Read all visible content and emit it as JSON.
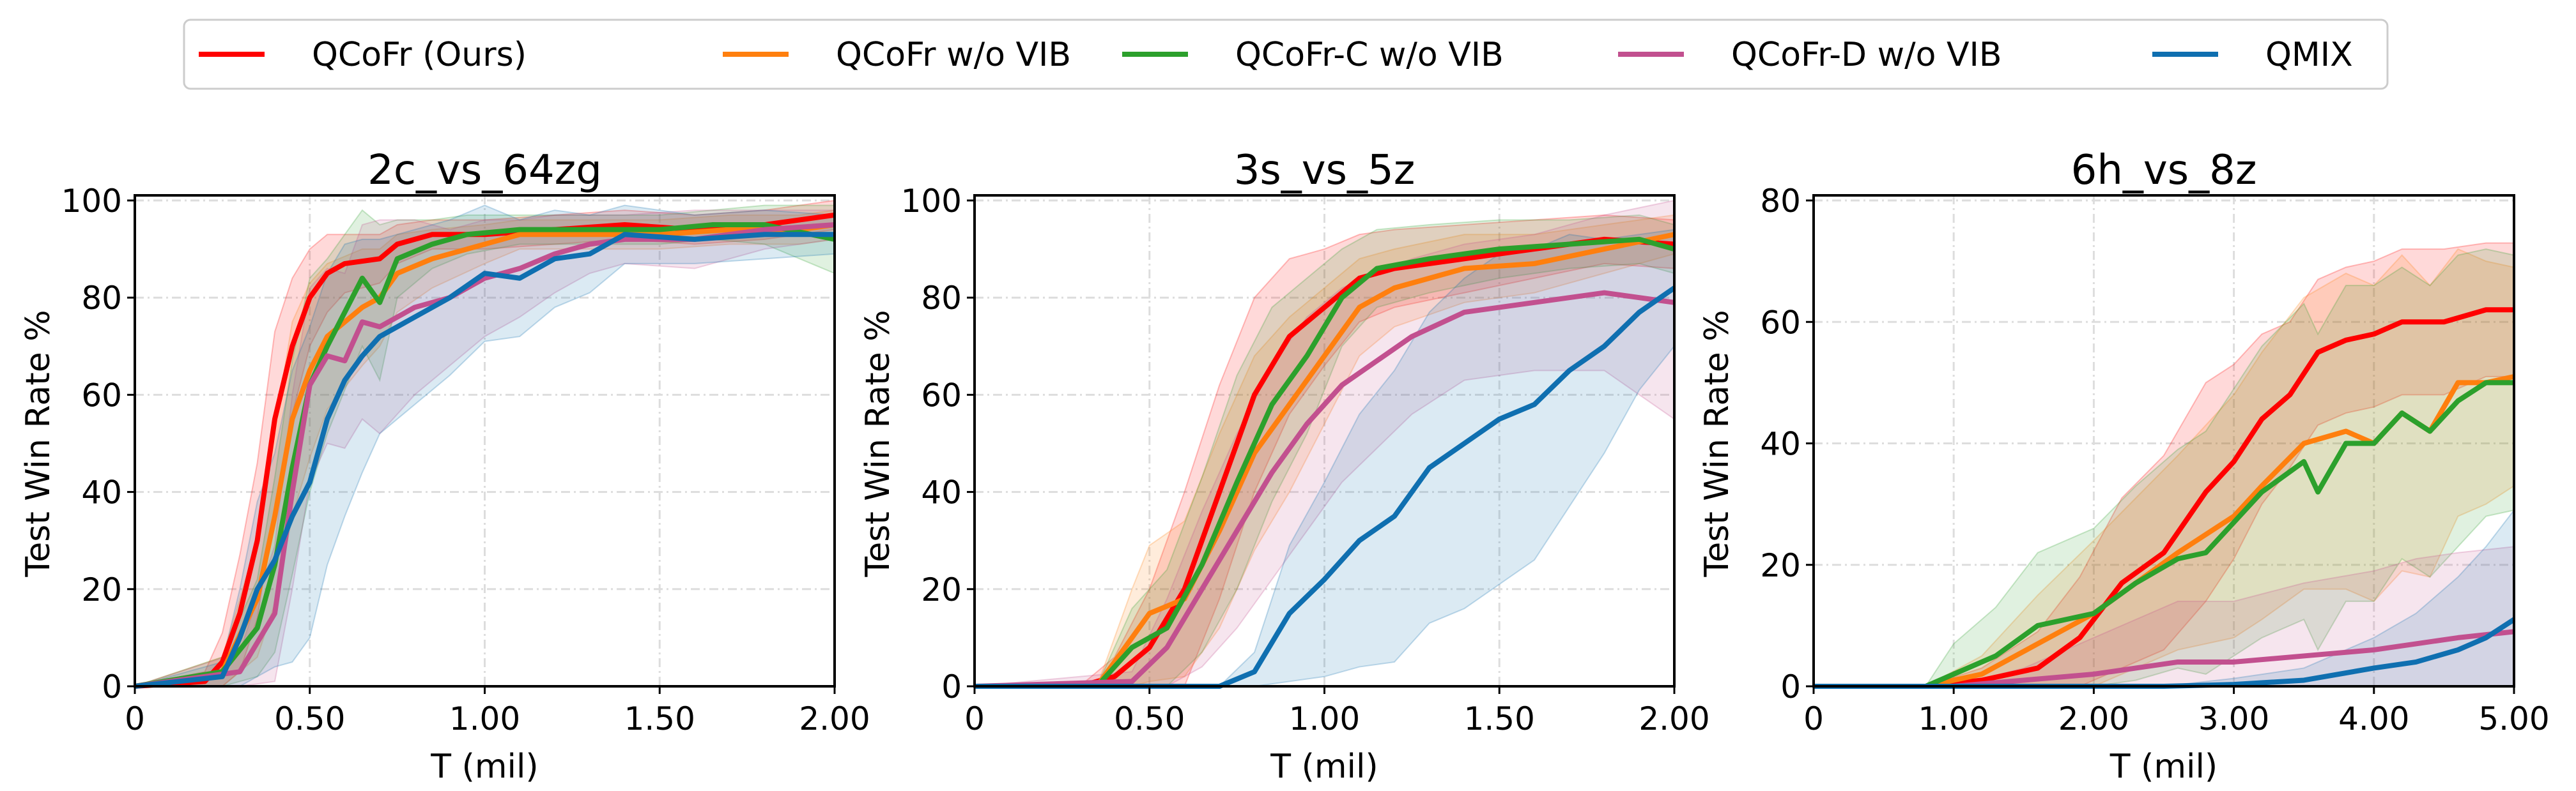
{
  "legend": {
    "placement": "top-center",
    "entries": [
      {
        "label": "QCoFr (Ours)",
        "color": "#ff0000"
      },
      {
        "label": "QCoFr w/o VIB",
        "color": "#ff7f0e"
      },
      {
        "label": "QCoFr-C w/o VIB",
        "color": "#2ca02c"
      },
      {
        "label": "QCoFr-D w/o VIB",
        "color": "#c2508f"
      },
      {
        "label": "QMIX",
        "color": "#0f6fb0"
      }
    ]
  },
  "chart_data": [
    {
      "type": "line",
      "title": "2c_vs_64zg",
      "xlabel": "T (mil)",
      "ylabel": "Test Win Rate %",
      "xlim": [
        0,
        2
      ],
      "ylim": [
        0,
        100
      ],
      "xticks": [
        0,
        0.5,
        1,
        1.5,
        2
      ],
      "xtick_labels": [
        "0",
        "0.50",
        "1.00",
        "1.50",
        "2.00"
      ],
      "yticks": [
        0,
        20,
        40,
        60,
        80,
        100
      ],
      "ytick_labels": [
        "0",
        "20",
        "40",
        "60",
        "80",
        "100"
      ],
      "grid": true,
      "series": [
        {
          "name": "QCoFr (Ours)",
          "x": [
            0,
            0.2,
            0.25,
            0.3,
            0.35,
            0.4,
            0.45,
            0.5,
            0.55,
            0.6,
            0.7,
            0.75,
            0.85,
            1.0,
            1.2,
            1.4,
            1.6,
            1.8,
            2.0
          ],
          "y": [
            0,
            1,
            5,
            15,
            30,
            55,
            70,
            80,
            85,
            87,
            88,
            91,
            93,
            93,
            94,
            95,
            94,
            95,
            97
          ],
          "band": [
            0,
            2,
            6,
            12,
            16,
            18,
            14,
            10,
            8,
            6,
            5,
            4,
            3,
            3,
            3,
            3,
            3,
            3,
            3
          ]
        },
        {
          "name": "QCoFr w/o VIB",
          "x": [
            0,
            0.25,
            0.35,
            0.4,
            0.45,
            0.5,
            0.55,
            0.65,
            0.7,
            0.75,
            0.85,
            1.0,
            1.1,
            1.3,
            1.5,
            1.7,
            1.9,
            2.0
          ],
          "y": [
            0,
            3,
            18,
            35,
            55,
            65,
            72,
            78,
            80,
            85,
            88,
            91,
            93,
            93,
            93,
            94,
            94,
            95
          ],
          "band": [
            0,
            3,
            12,
            18,
            20,
            18,
            15,
            12,
            10,
            8,
            6,
            4,
            3,
            3,
            3,
            3,
            3,
            3
          ]
        },
        {
          "name": "QCoFr-C w/o VIB",
          "x": [
            0,
            0.25,
            0.35,
            0.4,
            0.45,
            0.5,
            0.55,
            0.65,
            0.7,
            0.75,
            0.85,
            0.95,
            1.1,
            1.3,
            1.5,
            1.65,
            1.8,
            2.0
          ],
          "y": [
            0,
            3,
            12,
            25,
            45,
            62,
            70,
            84,
            79,
            88,
            91,
            93,
            94,
            94,
            94,
            95,
            95,
            92
          ],
          "band": [
            0,
            3,
            10,
            18,
            22,
            22,
            18,
            14,
            16,
            8,
            5,
            4,
            3,
            3,
            3,
            3,
            4,
            7
          ]
        },
        {
          "name": "QCoFr-D w/o VIB",
          "x": [
            0,
            0.3,
            0.4,
            0.45,
            0.5,
            0.55,
            0.6,
            0.65,
            0.7,
            0.8,
            0.9,
            1.0,
            1.1,
            1.2,
            1.3,
            1.4,
            1.6,
            1.8,
            2.0
          ],
          "y": [
            0,
            3,
            15,
            40,
            62,
            68,
            67,
            75,
            74,
            78,
            80,
            84,
            86,
            89,
            91,
            92,
            92,
            94,
            95
          ],
          "band": [
            0,
            4,
            14,
            20,
            20,
            18,
            18,
            20,
            22,
            18,
            14,
            12,
            10,
            8,
            6,
            5,
            6,
            4,
            3
          ]
        },
        {
          "name": "QMIX",
          "x": [
            0,
            0.25,
            0.3,
            0.35,
            0.4,
            0.45,
            0.5,
            0.55,
            0.6,
            0.65,
            0.7,
            0.8,
            0.9,
            1.0,
            1.1,
            1.2,
            1.3,
            1.4,
            1.6,
            1.8,
            2.0
          ],
          "y": [
            0,
            2,
            10,
            20,
            26,
            35,
            42,
            55,
            63,
            68,
            72,
            76,
            80,
            85,
            84,
            88,
            89,
            93,
            92,
            93,
            93
          ],
          "band": [
            0,
            3,
            10,
            18,
            22,
            30,
            32,
            30,
            28,
            24,
            20,
            18,
            16,
            14,
            12,
            10,
            8,
            6,
            5,
            5,
            4
          ]
        }
      ]
    },
    {
      "type": "line",
      "title": "3s_vs_5z",
      "xlabel": "T (mil)",
      "ylabel": "Test Win Rate %",
      "xlim": [
        0,
        2
      ],
      "ylim": [
        0,
        100
      ],
      "xticks": [
        0,
        0.5,
        1,
        1.5,
        2
      ],
      "xtick_labels": [
        "0",
        "0.50",
        "1.00",
        "1.50",
        "2.00"
      ],
      "yticks": [
        0,
        20,
        40,
        60,
        80,
        100
      ],
      "ytick_labels": [
        "0",
        "20",
        "40",
        "60",
        "80",
        "100"
      ],
      "grid": true,
      "series": [
        {
          "name": "QCoFr (Ours)",
          "x": [
            0,
            0.3,
            0.4,
            0.5,
            0.6,
            0.7,
            0.8,
            0.9,
            1.0,
            1.1,
            1.2,
            1.4,
            1.6,
            1.8,
            2.0
          ],
          "y": [
            0,
            0,
            2,
            8,
            20,
            40,
            60,
            72,
            78,
            84,
            86,
            88,
            90,
            92,
            91
          ],
          "band": [
            0,
            0,
            4,
            12,
            20,
            22,
            20,
            16,
            12,
            9,
            8,
            7,
            6,
            5,
            5
          ]
        },
        {
          "name": "QCoFr w/o VIB",
          "x": [
            0,
            0.35,
            0.45,
            0.5,
            0.6,
            0.7,
            0.8,
            0.9,
            1.0,
            1.1,
            1.2,
            1.4,
            1.6,
            1.8,
            2.0
          ],
          "y": [
            0,
            0,
            10,
            15,
            18,
            32,
            48,
            58,
            68,
            78,
            82,
            86,
            87,
            90,
            93
          ],
          "band": [
            0,
            0,
            10,
            14,
            16,
            20,
            20,
            18,
            14,
            10,
            8,
            7,
            6,
            5,
            4
          ]
        },
        {
          "name": "QCoFr-C w/o VIB",
          "x": [
            0,
            0.35,
            0.45,
            0.55,
            0.65,
            0.75,
            0.85,
            0.95,
            1.05,
            1.15,
            1.3,
            1.5,
            1.7,
            1.9,
            2.0
          ],
          "y": [
            0,
            0,
            8,
            12,
            25,
            42,
            58,
            68,
            80,
            86,
            88,
            90,
            91,
            92,
            90
          ],
          "band": [
            0,
            0,
            8,
            12,
            18,
            22,
            20,
            16,
            10,
            8,
            7,
            6,
            5,
            5,
            5
          ]
        },
        {
          "name": "QCoFr-D w/o VIB",
          "x": [
            0,
            0.45,
            0.55,
            0.65,
            0.75,
            0.85,
            0.95,
            1.05,
            1.15,
            1.25,
            1.4,
            1.6,
            1.8,
            2.0
          ],
          "y": [
            0,
            1,
            8,
            20,
            32,
            44,
            54,
            62,
            67,
            72,
            77,
            79,
            81,
            79
          ],
          "band": [
            0,
            2,
            10,
            16,
            20,
            22,
            22,
            20,
            18,
            16,
            14,
            14,
            16,
            24
          ]
        },
        {
          "name": "QMIX",
          "x": [
            0,
            0.7,
            0.8,
            0.9,
            1.0,
            1.1,
            1.2,
            1.3,
            1.4,
            1.5,
            1.6,
            1.7,
            1.8,
            1.9,
            2.0
          ],
          "y": [
            0,
            0,
            3,
            15,
            22,
            30,
            35,
            45,
            50,
            55,
            58,
            65,
            70,
            77,
            82
          ],
          "band": [
            0,
            0,
            4,
            14,
            20,
            26,
            30,
            32,
            34,
            34,
            32,
            28,
            22,
            16,
            12
          ]
        }
      ]
    },
    {
      "type": "line",
      "title": "6h_vs_8z",
      "xlabel": "T (mil)",
      "ylabel": "Test Win Rate %",
      "xlim": [
        0,
        5
      ],
      "ylim": [
        0,
        80
      ],
      "xticks": [
        0,
        1,
        2,
        3,
        4,
        5
      ],
      "xtick_labels": [
        "0",
        "1.00",
        "2.00",
        "3.00",
        "4.00",
        "5.00"
      ],
      "yticks": [
        0,
        20,
        40,
        60,
        80
      ],
      "ytick_labels": [
        "0",
        "20",
        "40",
        "60",
        "80"
      ],
      "grid": true,
      "series": [
        {
          "name": "QCoFr (Ours)",
          "x": [
            0,
            0.8,
            1.2,
            1.6,
            1.9,
            2.2,
            2.5,
            2.8,
            3.0,
            3.2,
            3.4,
            3.6,
            3.8,
            4.0,
            4.2,
            4.5,
            4.8,
            5.0
          ],
          "y": [
            0,
            0,
            1,
            3,
            8,
            17,
            22,
            32,
            37,
            44,
            48,
            55,
            57,
            58,
            60,
            60,
            62,
            62
          ],
          "band": [
            0,
            0,
            2,
            6,
            10,
            14,
            16,
            18,
            16,
            14,
            12,
            12,
            12,
            12,
            12,
            12,
            11,
            11
          ]
        },
        {
          "name": "QCoFr w/o VIB",
          "x": [
            0,
            0.8,
            1.2,
            1.6,
            2.0,
            2.3,
            2.6,
            3.0,
            3.2,
            3.5,
            3.8,
            4.0,
            4.2,
            4.4,
            4.6,
            4.8,
            5.0
          ],
          "y": [
            0,
            0,
            2,
            7,
            12,
            17,
            22,
            28,
            33,
            40,
            42,
            40,
            45,
            42,
            50,
            50,
            51
          ],
          "band": [
            0,
            0,
            3,
            8,
            12,
            14,
            16,
            20,
            22,
            24,
            26,
            26,
            26,
            24,
            22,
            20,
            18
          ]
        },
        {
          "name": "QCoFr-C w/o VIB",
          "x": [
            0,
            0.8,
            1.0,
            1.3,
            1.6,
            2.0,
            2.3,
            2.6,
            2.8,
            3.0,
            3.2,
            3.5,
            3.6,
            3.8,
            4.0,
            4.2,
            4.4,
            4.6,
            4.8,
            5.0
          ],
          "y": [
            0,
            0,
            2,
            5,
            10,
            12,
            17,
            21,
            22,
            27,
            32,
            37,
            32,
            40,
            40,
            45,
            42,
            47,
            50,
            50
          ],
          "band": [
            0,
            0,
            5,
            8,
            12,
            14,
            16,
            18,
            20,
            22,
            24,
            26,
            26,
            26,
            26,
            24,
            24,
            24,
            22,
            21
          ]
        },
        {
          "name": "QCoFr-D w/o VIB",
          "x": [
            0,
            1.0,
            1.5,
            2.0,
            2.3,
            2.6,
            3.0,
            3.5,
            4.0,
            4.3,
            4.6,
            5.0
          ],
          "y": [
            0,
            0,
            1,
            2,
            3,
            4,
            4,
            5,
            6,
            7,
            8,
            9
          ],
          "band": [
            0,
            0,
            2,
            6,
            8,
            10,
            10,
            12,
            13,
            14,
            14,
            14
          ]
        },
        {
          "name": "QMIX",
          "x": [
            0,
            2.5,
            3.0,
            3.5,
            4.0,
            4.3,
            4.6,
            4.8,
            5.0
          ],
          "y": [
            0,
            0,
            0.3,
            1,
            3,
            4,
            6,
            8,
            11
          ],
          "band": [
            0,
            0,
            1,
            2,
            5,
            8,
            12,
            15,
            18
          ]
        }
      ]
    }
  ]
}
